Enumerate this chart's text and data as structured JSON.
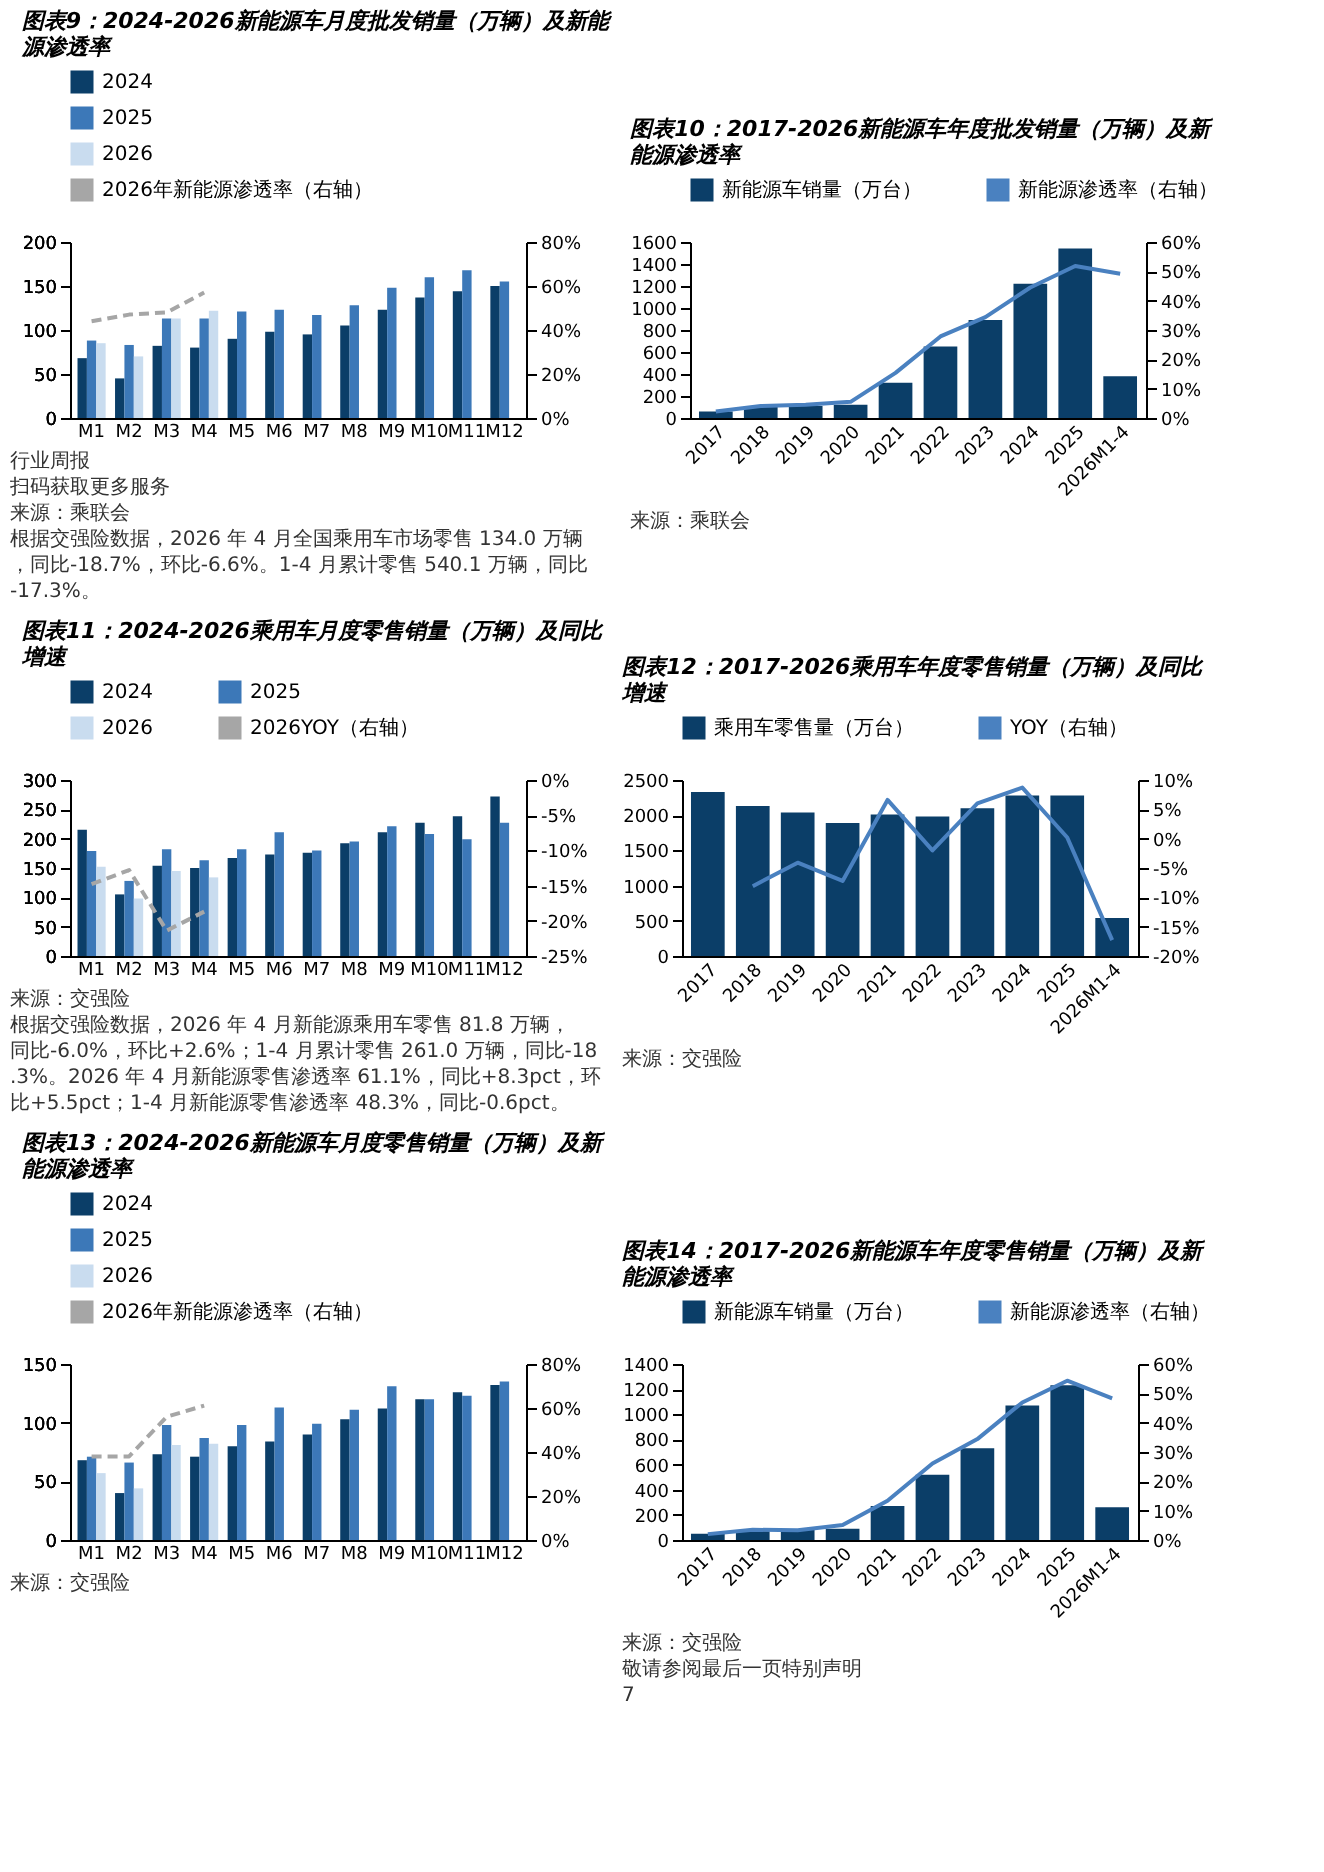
{
  "chart_data": [
    {
      "type": "bar",
      "title": "图表9：2024-2026新能源车月度批发销量（万辆）及新能源渗透率",
      "categories": [
        "M1",
        "M2",
        "M3",
        "M4",
        "M5",
        "M6",
        "M7",
        "M8",
        "M9",
        "M10",
        "M11",
        "M12"
      ],
      "ylim": [
        0,
        200
      ],
      "yticks": [
        0,
        50,
        100,
        150,
        200
      ],
      "y2lim": [
        0,
        80
      ],
      "y2ticks": [
        {
          "value": 0,
          "label": "0%"
        },
        {
          "value": 20,
          "label": "20%"
        },
        {
          "value": 40,
          "label": "40%"
        },
        {
          "value": 60,
          "label": "60%"
        },
        {
          "value": 80,
          "label": "80%"
        }
      ],
      "grid": false,
      "legend": "top left",
      "series": [
        {
          "name": "2024",
          "color": "#0b3e68",
          "values": [
            68,
            45,
            82,
            80,
            90,
            98,
            95,
            105,
            123,
            137,
            144,
            150
          ]
        },
        {
          "name": "2025",
          "color": "#3c78b8",
          "values": [
            88,
            83,
            113,
            113,
            121,
            123,
            117,
            128,
            148,
            160,
            168,
            155
          ]
        },
        {
          "name": "2026",
          "color": "#c9dcef",
          "values": [
            85,
            70,
            113,
            122,
            null,
            null,
            null,
            null,
            null,
            null,
            null,
            null
          ]
        },
        {
          "name": "2026年新能源渗透率（右轴）",
          "color": "#a6a6a6",
          "type": "line",
          "axis": "y2",
          "line_style": "dashed",
          "values": [
            44,
            47,
            48,
            57,
            null,
            null,
            null,
            null,
            null,
            null,
            null,
            null
          ]
        }
      ],
      "annotations": [
        "行业周报",
        "扫码获取更多服务",
        "来源：乘联会",
        "根据交强险数据，2026 年 4 月全国乘用车市场零售 134.0 万辆，同比-18.7%，环比-6.6%。1-4 月累计零售 540.1 万辆，同比-17.3%。"
      ]
    },
    {
      "type": "bar",
      "title": "图表10：2017-2026新能源车年度批发销量（万辆）及新能源渗透率",
      "categories": [
        "2017",
        "2018",
        "2019",
        "2020",
        "2021",
        "2022",
        "2023",
        "2024",
        "2025",
        "2026M1-4"
      ],
      "ylim": [
        0,
        1600
      ],
      "yticks": [
        0,
        200,
        400,
        600,
        800,
        1000,
        1200,
        1400,
        1600
      ],
      "y2lim": [
        0,
        60
      ],
      "y2ticks": [
        {
          "value": 0,
          "label": "0%"
        },
        {
          "value": 10,
          "label": "10%"
        },
        {
          "value": 20,
          "label": "20%"
        },
        {
          "value": 30,
          "label": "30%"
        },
        {
          "value": 40,
          "label": "40%"
        },
        {
          "value": 50,
          "label": "50%"
        },
        {
          "value": 60,
          "label": "60%"
        }
      ],
      "grid": false,
      "legend": "top",
      "series": [
        {
          "name": "新能源车销量（万台）",
          "color": "#0b3e68",
          "values": [
            60,
            100,
            110,
            120,
            320,
            650,
            890,
            1220,
            1540,
            380
          ]
        },
        {
          "name": "新能源渗透率（右轴）",
          "color": "#4a81c0",
          "type": "line",
          "axis": "y2",
          "line_style": "solid",
          "values": [
            2.2,
            4.1,
            4.5,
            5.5,
            15.4,
            27.8,
            34.4,
            44.5,
            51.8,
            49.2
          ]
        }
      ],
      "annotations": [
        "来源：乘联会"
      ]
    },
    {
      "type": "bar",
      "title": "图表11：2024-2026乘用车月度零售销量（万辆）及同比增速",
      "categories": [
        "M1",
        "M2",
        "M3",
        "M4",
        "M5",
        "M6",
        "M7",
        "M8",
        "M9",
        "M10",
        "M11",
        "M12"
      ],
      "ylim": [
        0,
        300
      ],
      "yticks": [
        0,
        50,
        100,
        150,
        200,
        250,
        300
      ],
      "y2lim": [
        -25,
        0
      ],
      "y2ticks": [
        {
          "value": -25,
          "label": "-25%"
        },
        {
          "value": -20,
          "label": "-20%"
        },
        {
          "value": -15,
          "label": "-15%"
        },
        {
          "value": -10,
          "label": "-10%"
        },
        {
          "value": -5,
          "label": "-5%"
        },
        {
          "value": 0,
          "label": "0%"
        }
      ],
      "grid": false,
      "legend": "top",
      "series": [
        {
          "name": "2024",
          "color": "#0b3e68",
          "values": [
            215,
            105,
            154,
            150,
            167,
            173,
            176,
            192,
            211,
            227,
            238,
            272
          ]
        },
        {
          "name": "2025",
          "color": "#3c78b8",
          "values": [
            179,
            128,
            182,
            163,
            182,
            211,
            180,
            195,
            221,
            208,
            199,
            227
          ]
        },
        {
          "name": "2026",
          "color": "#c9dcef",
          "values": [
            152,
            98,
            145,
            134,
            null,
            null,
            null,
            null,
            null,
            null,
            null,
            null
          ]
        },
        {
          "name": "2026YOY（右轴）",
          "color": "#a6a6a6",
          "type": "line",
          "axis": "y2",
          "line_style": "dashed",
          "values": [
            -14.8,
            -12.8,
            -21.4,
            -18.7,
            null,
            null,
            null,
            null,
            null,
            null,
            null,
            null
          ]
        }
      ],
      "annotations": [
        "来源：交强险",
        "根据交强险数据，2026 年 4 月新能源乘用车零售 81.8 万辆，同比-6.0%，环比+2.6%；1-4 月累计零售 261.0 万辆，同比-18.3%。2026 年 4 月新能源零售渗透率 61.1%，同比+8.3pct，环比+5.5pct；1-4 月新能源零售渗透率 48.3%，同比-0.6pct。"
      ]
    },
    {
      "type": "bar",
      "title": "图表12：2017-2026乘用车年度零售销量（万辆）及同比增速",
      "categories": [
        "2017",
        "2018",
        "2019",
        "2020",
        "2021",
        "2022",
        "2023",
        "2024",
        "2025",
        "2026M1-4"
      ],
      "ylim": [
        0,
        2500
      ],
      "yticks": [
        0,
        500,
        1000,
        1500,
        2000,
        2500
      ],
      "y2lim": [
        -20,
        10
      ],
      "y2ticks": [
        {
          "value": -20,
          "label": "-20%"
        },
        {
          "value": -15,
          "label": "-15%"
        },
        {
          "value": -10,
          "label": "-10%"
        },
        {
          "value": -5,
          "label": "-5%"
        },
        {
          "value": 0,
          "label": "0%"
        },
        {
          "value": 5,
          "label": "5%"
        },
        {
          "value": 10,
          "label": "10%"
        }
      ],
      "grid": false,
      "legend": "top",
      "series": [
        {
          "name": "乘用车零售量（万台）",
          "color": "#0b3e68",
          "values": [
            2330,
            2130,
            2040,
            1890,
            2010,
            1980,
            2100,
            2280,
            2280,
            540
          ]
        },
        {
          "name": "YOY（右轴）",
          "color": "#4a81c0",
          "type": "line",
          "axis": "y2",
          "line_style": "solid",
          "values": [
            null,
            -8.1,
            -4.1,
            -7.2,
            6.6,
            -2.0,
            6.0,
            8.7,
            0.2,
            -17.3
          ]
        }
      ],
      "annotations": [
        "来源：交强险"
      ]
    },
    {
      "type": "bar",
      "title": "图表13：2024-2026新能源车月度零售销量（万辆）及新能源渗透率",
      "categories": [
        "M1",
        "M2",
        "M3",
        "M4",
        "M5",
        "M6",
        "M7",
        "M8",
        "M9",
        "M10",
        "M11",
        "M12"
      ],
      "ylim": [
        0,
        150
      ],
      "yticks": [
        0,
        50,
        100,
        150
      ],
      "y2lim": [
        0,
        80
      ],
      "y2ticks": [
        {
          "value": 0,
          "label": "0%"
        },
        {
          "value": 20,
          "label": "20%"
        },
        {
          "value": 40,
          "label": "40%"
        },
        {
          "value": 60,
          "label": "60%"
        },
        {
          "value": 80,
          "label": "80%"
        }
      ],
      "grid": false,
      "legend": "top left",
      "series": [
        {
          "name": "2024",
          "color": "#0b3e68",
          "values": [
            68,
            40,
            73,
            71,
            80,
            84,
            90,
            103,
            112,
            120,
            126,
            132
          ]
        },
        {
          "name": "2025",
          "color": "#3c78b8",
          "values": [
            71,
            66,
            98,
            87,
            98,
            113,
            99,
            111,
            131,
            120,
            123,
            135
          ]
        },
        {
          "name": "2026",
          "color": "#c9dcef",
          "values": [
            57,
            44,
            81,
            82,
            null,
            null,
            null,
            null,
            null,
            null,
            null,
            null
          ]
        },
        {
          "name": "2026年新能源渗透率（右轴）",
          "color": "#a6a6a6",
          "type": "line",
          "axis": "y2",
          "line_style": "dashed",
          "values": [
            38,
            38,
            56,
            61.1,
            null,
            null,
            null,
            null,
            null,
            null,
            null,
            null
          ]
        }
      ],
      "annotations": [
        "来源：交强险"
      ]
    },
    {
      "type": "bar",
      "title": "图表14：2017-2026新能源车年度零售销量（万辆）及新能源渗透率",
      "categories": [
        "2017",
        "2018",
        "2019",
        "2020",
        "2021",
        "2022",
        "2023",
        "2024",
        "2025",
        "2026M1-4"
      ],
      "ylim": [
        0,
        1400
      ],
      "yticks": [
        0,
        200,
        400,
        600,
        800,
        1000,
        1200,
        1400
      ],
      "y2lim": [
        0,
        60
      ],
      "y2ticks": [
        {
          "value": 0,
          "label": "0%"
        },
        {
          "value": 10,
          "label": "10%"
        },
        {
          "value": 20,
          "label": "20%"
        },
        {
          "value": 30,
          "label": "30%"
        },
        {
          "value": 40,
          "label": "40%"
        },
        {
          "value": 50,
          "label": "50%"
        },
        {
          "value": 60,
          "label": "60%"
        }
      ],
      "grid": false,
      "legend": "top",
      "series": [
        {
          "name": "新能源车销量（万台）",
          "color": "#0b3e68",
          "values": [
            50,
            70,
            80,
            90,
            270,
            520,
            730,
            1070,
            1230,
            261
          ]
        },
        {
          "name": "新能源渗透率（右轴）",
          "color": "#4a81c0",
          "type": "line",
          "axis": "y2",
          "line_style": "solid",
          "values": [
            2.0,
            3.5,
            3.3,
            5.1,
            13.4,
            26.1,
            34.4,
            46.9,
            54.3,
            48.3
          ]
        }
      ],
      "annotations": [
        "来源：交强险",
        "敬请参阅最后一页特别声明",
        "7"
      ]
    }
  ]
}
